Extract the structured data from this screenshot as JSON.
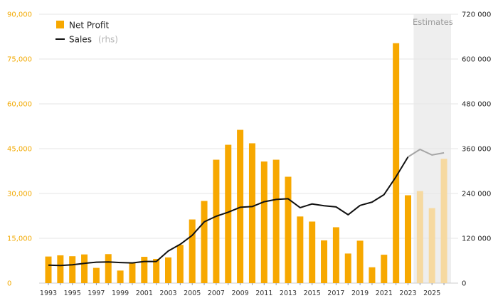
{
  "chart_data": {
    "type": "bar",
    "x": [
      1993,
      1994,
      1995,
      1996,
      1997,
      1998,
      1999,
      2000,
      2001,
      2002,
      2003,
      2004,
      2005,
      2006,
      2007,
      2008,
      2009,
      2010,
      2011,
      2012,
      2013,
      2014,
      2015,
      2016,
      2017,
      2018,
      2019,
      2020,
      2021,
      2022,
      2023,
      2024,
      2025,
      2026
    ],
    "series": [
      {
        "name": "Net Profit",
        "axis": "left",
        "chart_type": "bar",
        "color": "#f7a800",
        "estimate_color": "#f6d9a0",
        "values": [
          8900,
          9300,
          9000,
          9600,
          5100,
          9700,
          4200,
          6800,
          8800,
          8100,
          8600,
          12800,
          21300,
          27500,
          41300,
          46300,
          51300,
          46800,
          40700,
          41300,
          35600,
          22300,
          20600,
          14300,
          18700,
          9900,
          14200,
          5300,
          9500,
          80300,
          29400,
          30800,
          25100,
          41600
        ]
      },
      {
        "name": "Sales",
        "name_suffix": "(rhs)",
        "axis": "right",
        "chart_type": "line",
        "color": "#111111",
        "estimate_color": "#a5a5a5",
        "values": [
          48000,
          47000,
          49000,
          53000,
          56000,
          56500,
          55000,
          54000,
          58000,
          58000,
          86000,
          104000,
          128000,
          164000,
          179000,
          190000,
          203000,
          205000,
          218000,
          224000,
          226000,
          202000,
          212000,
          207000,
          204000,
          183000,
          208000,
          217000,
          237000,
          285000,
          338000,
          358000,
          343000,
          349000
        ]
      }
    ],
    "estimates_from": 2024,
    "estimates_label": "Estimates",
    "estimates_shade_color": "#eeeeee",
    "x_tick_labels": [
      "1993",
      "1995",
      "1997",
      "1999",
      "2001",
      "2003",
      "2005",
      "2007",
      "2009",
      "2011",
      "2013",
      "2015",
      "2017",
      "2019",
      "2021",
      "2023",
      "2025"
    ],
    "y_left": {
      "range": [
        0,
        90000
      ],
      "ticks": [
        "0",
        "15,000",
        "30,000",
        "45,000",
        "60,000",
        "75,000",
        "90,000"
      ],
      "color": "#f2a900"
    },
    "y_right": {
      "range": [
        0,
        720000
      ],
      "ticks": [
        "0",
        "120 000",
        "240 000",
        "360 000",
        "480 000",
        "600 000",
        "720 000"
      ],
      "color": "#222222"
    },
    "grid": "horizontal",
    "legend_placement": "top-left"
  }
}
